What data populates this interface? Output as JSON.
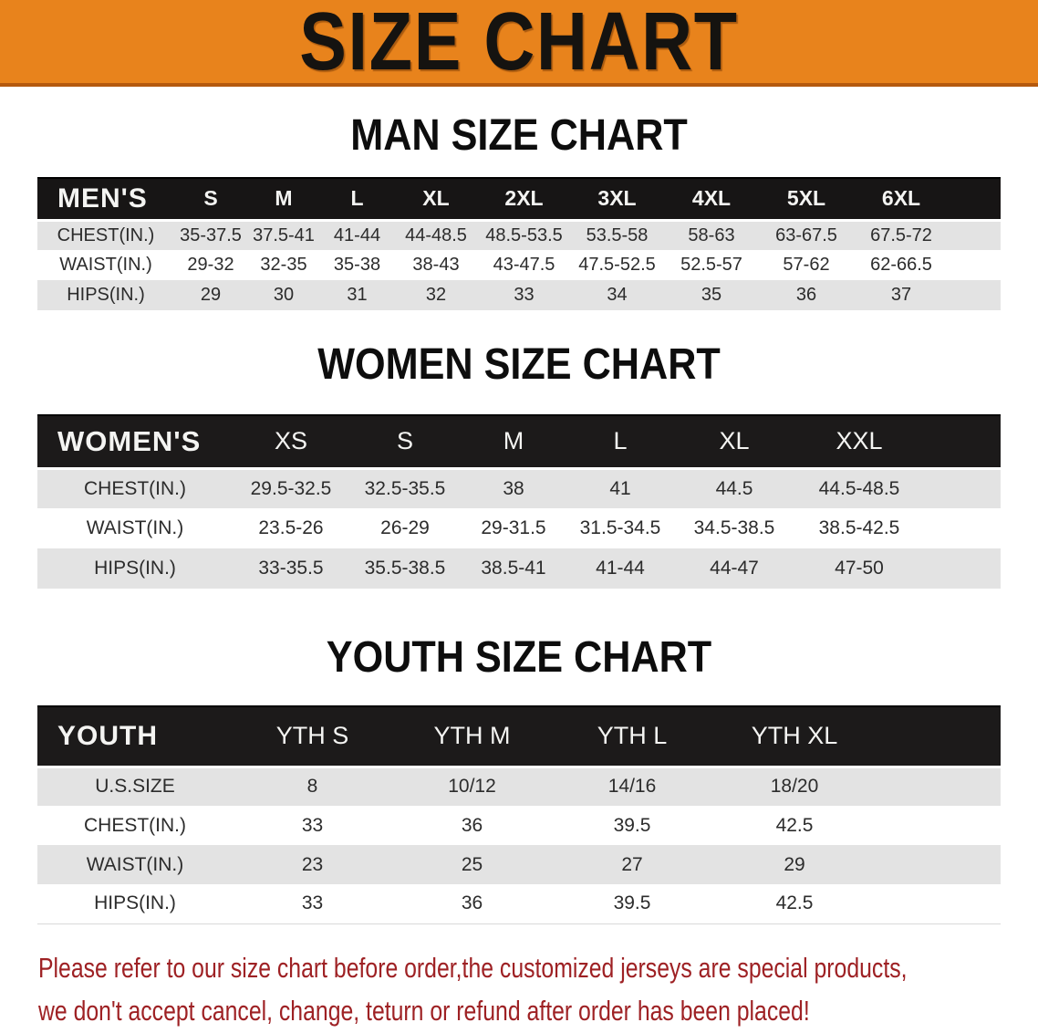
{
  "banner": {
    "title": "SIZE CHART",
    "bg_color": "#E8831C",
    "border_color": "#B4590E",
    "text_color": "#151310"
  },
  "sections": {
    "men": {
      "heading": "MAN SIZE CHART",
      "table": {
        "label": "MEN'S",
        "columns": [
          "S",
          "M",
          "L",
          "XL",
          "2XL",
          "3XL",
          "4XL",
          "5XL",
          "6XL"
        ],
        "rows": [
          {
            "label": "CHEST(IN.)",
            "values": [
              "35-37.5",
              "37.5-41",
              "41-44",
              "44-48.5",
              "48.5-53.5",
              "53.5-58",
              "58-63",
              "63-67.5",
              "67.5-72"
            ]
          },
          {
            "label": "WAIST(IN.)",
            "values": [
              "29-32",
              "32-35",
              "35-38",
              "38-43",
              "43-47.5",
              "47.5-52.5",
              "52.5-57",
              "57-62",
              "62-66.5"
            ]
          },
          {
            "label": "HIPS(IN.)",
            "values": [
              "29",
              "30",
              "31",
              "32",
              "33",
              "34",
              "35",
              "36",
              "37"
            ]
          }
        ]
      }
    },
    "women": {
      "heading": "WOMEN SIZE CHART",
      "table": {
        "label": "WOMEN'S",
        "columns": [
          "XS",
          "S",
          "M",
          "L",
          "XL",
          "XXL"
        ],
        "rows": [
          {
            "label": "CHEST(IN.)",
            "values": [
              "29.5-32.5",
              "32.5-35.5",
              "38",
              "41",
              "44.5",
              "44.5-48.5"
            ]
          },
          {
            "label": "WAIST(IN.)",
            "values": [
              "23.5-26",
              "26-29",
              "29-31.5",
              "31.5-34.5",
              "34.5-38.5",
              "38.5-42.5"
            ]
          },
          {
            "label": "HIPS(IN.)",
            "values": [
              "33-35.5",
              "35.5-38.5",
              "38.5-41",
              "41-44",
              "44-47",
              "47-50"
            ]
          }
        ]
      }
    },
    "youth": {
      "heading": "YOUTH SIZE CHART",
      "table": {
        "label": "YOUTH",
        "columns": [
          "YTH S",
          "YTH M",
          "YTH L",
          "YTH XL"
        ],
        "rows": [
          {
            "label": "U.S.SIZE",
            "values": [
              "8",
              "10/12",
              "14/16",
              "18/20"
            ]
          },
          {
            "label": "CHEST(IN.)",
            "values": [
              "33",
              "36",
              "39.5",
              "42.5"
            ]
          },
          {
            "label": "WAIST(IN.)",
            "values": [
              "23",
              "25",
              "27",
              "29"
            ]
          },
          {
            "label": "HIPS(IN.)",
            "values": [
              "33",
              "36",
              "39.5",
              "42.5"
            ]
          }
        ]
      }
    }
  },
  "table_style": {
    "header_bg": "#171515",
    "header_text": "#F4F4F2",
    "stripe_gray": "#E3E3E3",
    "body_text": "#2C2C2C"
  },
  "disclaimer": {
    "line1": "Please refer to our size chart before order,the customized jerseys are special products,",
    "line2": "we don't accept cancel, change, teturn or refund after order has been placed!",
    "color": "#9E2124"
  }
}
